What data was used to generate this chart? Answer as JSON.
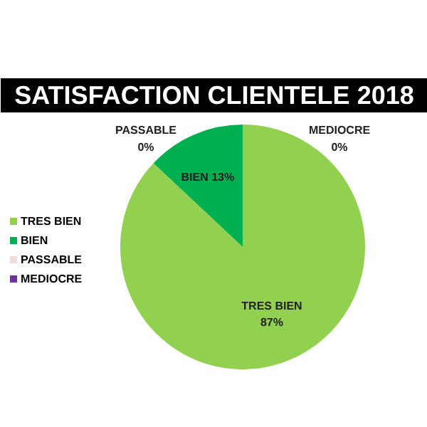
{
  "chart_data": {
    "type": "pie",
    "title": "SATISFACTION CLIENTELE 2018",
    "categories": [
      "TRES BIEN",
      "BIEN",
      "PASSABLE",
      "MEDIOCRE"
    ],
    "values": [
      87,
      13,
      0,
      0
    ],
    "colors": [
      "#92d050",
      "#00b050",
      "#f2dcdb",
      "#7030a0"
    ],
    "value_labels": [
      "TRES BIEN\n87%",
      "BIEN 13%",
      "PASSABLE\n0%",
      "MEDIOCRE\n0%"
    ],
    "legend": "left"
  }
}
